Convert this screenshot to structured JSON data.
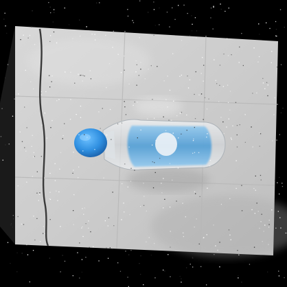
{
  "photo": {
    "subject": "plastic-water-bottle",
    "colors": {
      "background": "#000000",
      "floor": "#cfcfcf",
      "floor_shadow": "#b9b9b9",
      "grout": "#bdbdbd",
      "cable": "#3a3a3a",
      "bottle_body": "#e3e6ea",
      "bottle_label": "#5aa6de",
      "bottle_cap": "#2f8fe0",
      "noise": "#ffffff"
    }
  }
}
